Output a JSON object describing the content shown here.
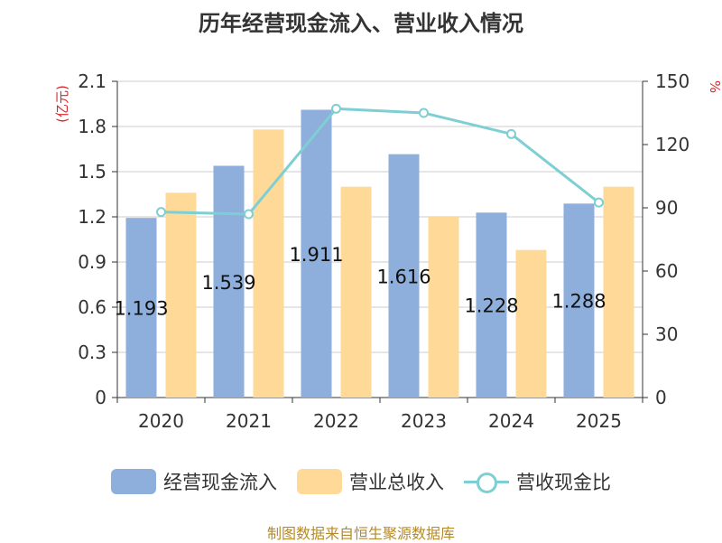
{
  "chart_data": {
    "type": "bar",
    "title": "历年经营现金流入、营业收入情况",
    "categories": [
      "2020",
      "2021",
      "2022",
      "2023",
      "2024",
      "2025"
    ],
    "series": [
      {
        "name": "经营现金流入",
        "type": "bar",
        "axis": "left",
        "values": [
          1.193,
          1.539,
          1.911,
          1.616,
          1.228,
          1.288
        ],
        "data_labels": [
          "1.193",
          "1.539",
          "1.911",
          "1.616",
          "1.228",
          "1.288"
        ],
        "color": "#8eaedc"
      },
      {
        "name": "营业总收入",
        "type": "bar",
        "axis": "left",
        "values": [
          1.36,
          1.78,
          1.4,
          1.2,
          0.98,
          1.4
        ],
        "color": "#ffd997"
      },
      {
        "name": "营收现金比",
        "type": "line",
        "axis": "right",
        "values": [
          88,
          87,
          137,
          135,
          125,
          92.5
        ],
        "color": "#7ecfd4"
      }
    ],
    "y_left": {
      "label": "(亿元)",
      "range": [
        0,
        2.1
      ],
      "ticks": [
        "0",
        "0.3",
        "0.6",
        "0.9",
        "1.2",
        "1.5",
        "1.8",
        "2.1"
      ]
    },
    "y_right": {
      "label": "%",
      "range": [
        0,
        150
      ],
      "ticks": [
        "0",
        "30",
        "60",
        "90",
        "120",
        "150"
      ]
    },
    "grid": true,
    "legend_position": "bottom"
  },
  "footer": {
    "source": "制图数据来自恒生聚源数据库"
  },
  "colors": {
    "axis_label_red": "#d9262b",
    "grid": "#cccccc",
    "axis": "#333333"
  }
}
